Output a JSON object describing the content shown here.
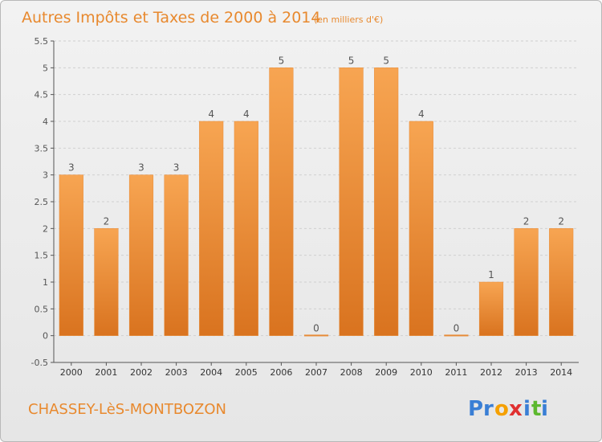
{
  "chart_data": {
    "type": "bar",
    "title": "Autres Impôts et Taxes de 2000 à 2014",
    "subtitle": "(en milliers d'€)",
    "categories": [
      "2000",
      "2001",
      "2002",
      "2003",
      "2004",
      "2005",
      "2006",
      "2007",
      "2008",
      "2009",
      "2010",
      "2011",
      "2012",
      "2013",
      "2014"
    ],
    "values": [
      3,
      2,
      3,
      3,
      4,
      4,
      5,
      0,
      5,
      5,
      4,
      0,
      1,
      2,
      2
    ],
    "value_labels": [
      "3",
      "2",
      "3",
      "3",
      "4",
      "4",
      "5",
      "0",
      "5",
      "5",
      "4",
      "0",
      "1",
      "2",
      "2"
    ],
    "ylim": [
      -0.5,
      5.5
    ],
    "yticks": [
      -0.5,
      0,
      0.5,
      1,
      1.5,
      2,
      2.5,
      3,
      3.5,
      4,
      4.5,
      5,
      5.5
    ],
    "ytick_labels": [
      "-0.5",
      "0",
      "0.5",
      "1",
      "1.5",
      "2",
      "2.5",
      "3",
      "3.5",
      "4",
      "4.5",
      "5",
      "5.5"
    ],
    "grid": true,
    "bar_color_top": "#f7a552",
    "bar_color_bottom": "#d9731f"
  },
  "footer": {
    "commune": "CHASSEY-LèS-MONTBOZON",
    "logo_letters": [
      "P",
      "r",
      "o",
      "x",
      "i",
      "t",
      "i"
    ],
    "logo_colors": [
      "#3a7fd5",
      "#3a7fd5",
      "#f5a000",
      "#e03030",
      "#3a7fd5",
      "#5cb82e",
      "#3a7fd5"
    ]
  }
}
